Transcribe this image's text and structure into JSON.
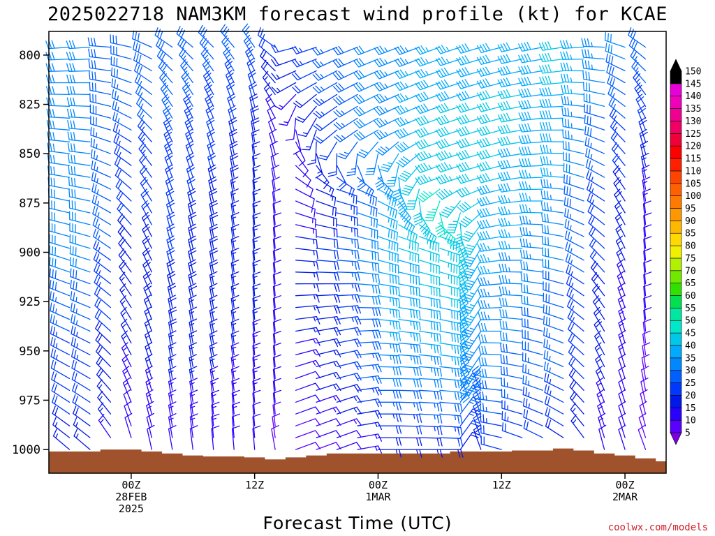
{
  "chart_data": {
    "type": "wind-barb-time-height",
    "title": "2025022718 NAM3KM forecast wind profile (kt) for KCAE",
    "xlabel": "Forecast Time (UTC)",
    "credit": "coolwx.com/models",
    "units": "kt",
    "y_axis": {
      "quantity": "pressure (hPa)",
      "range": [
        1012,
        788
      ],
      "ticks": [
        800,
        825,
        850,
        875,
        900,
        925,
        950,
        975,
        1000
      ]
    },
    "x_axis": {
      "range_hours": [
        -8,
        52
      ],
      "ticks": [
        {
          "hour": 0,
          "lines": [
            "00Z",
            "28FEB",
            "2025"
          ]
        },
        {
          "hour": 12,
          "lines": [
            "12Z"
          ]
        },
        {
          "hour": 24,
          "lines": [
            "00Z",
            "1MAR"
          ]
        },
        {
          "hour": 36,
          "lines": [
            "12Z"
          ]
        },
        {
          "hour": 48,
          "lines": [
            "00Z",
            "2MAR"
          ]
        }
      ]
    },
    "colorbar": {
      "levels": [
        5,
        10,
        15,
        20,
        25,
        30,
        35,
        40,
        45,
        50,
        55,
        60,
        65,
        70,
        75,
        80,
        85,
        90,
        95,
        100,
        105,
        110,
        115,
        120,
        125,
        130,
        135,
        140,
        145,
        150
      ],
      "colors": [
        "#7a00e6",
        "#5a00ff",
        "#2a00ff",
        "#0018e8",
        "#0038ff",
        "#0060ff",
        "#0088ff",
        "#00aaff",
        "#00c8e8",
        "#00e8c8",
        "#00e8a0",
        "#00e050",
        "#30e000",
        "#70e800",
        "#b0f000",
        "#f0f000",
        "#ffd800",
        "#ffb800",
        "#ff9800",
        "#ff7a00",
        "#ff6000",
        "#ff4400",
        "#ff2000",
        "#ff0000",
        "#f00038",
        "#f00064",
        "#f00090",
        "#f000b8",
        "#e800d8",
        "#000000"
      ]
    },
    "times_hours": [
      -4,
      -2,
      0,
      2,
      4,
      6,
      8,
      10,
      12,
      14,
      16,
      18,
      20,
      22,
      24,
      26,
      28,
      30,
      32,
      34,
      36,
      38,
      40,
      42,
      44,
      46,
      48,
      50,
      52
    ],
    "terrain_pressure_hpa": [
      1001.0,
      1000.0,
      1000.0,
      1001.0,
      1002.0,
      1003.0,
      1003.5,
      1003.5,
      1004.0,
      1005.0,
      1004.0,
      1003.0,
      1002.0,
      1002.0,
      1002.0,
      1002.0,
      1002.0,
      1002.0,
      1001.0,
      1001.0,
      1001.0,
      1000.5,
      1000.5,
      999.5,
      1000.5,
      1002.0,
      1003.0,
      1004.5,
      1006.0
    ],
    "wind_profile": [
      {
        "hour": -4,
        "dir": [
          265,
          270,
          275,
          280,
          285,
          290,
          295,
          300,
          305,
          310
        ],
        "spd": [
          30,
          30,
          30,
          30,
          32,
          30,
          25,
          22,
          20,
          15
        ]
      },
      {
        "hour": 0,
        "dir": [
          280,
          290,
          300,
          310,
          320,
          325,
          330,
          335,
          340,
          345
        ],
        "spd": [
          30,
          28,
          25,
          22,
          20,
          18,
          16,
          14,
          12,
          10
        ]
      },
      {
        "hour": 4,
        "dir": [
          300,
          320,
          335,
          340,
          345,
          345,
          350,
          350,
          350,
          350
        ],
        "spd": [
          30,
          28,
          25,
          22,
          20,
          20,
          18,
          16,
          14,
          12
        ]
      },
      {
        "hour": 8,
        "dir": [
          310,
          330,
          340,
          345,
          350,
          350,
          350,
          350,
          355,
          355
        ],
        "spd": [
          30,
          25,
          22,
          20,
          18,
          18,
          16,
          15,
          14,
          12
        ]
      },
      {
        "hour": 12,
        "dir": [
          320,
          340,
          350,
          355,
          355,
          355,
          355,
          355,
          355,
          355
        ],
        "spd": [
          28,
          22,
          18,
          16,
          15,
          15,
          15,
          14,
          12,
          10
        ]
      },
      {
        "hour": 14,
        "dir": [
          300,
          320,
          340,
          350,
          355,
          355,
          355,
          355,
          355,
          350
        ],
        "spd": [
          25,
          18,
          12,
          10,
          10,
          10,
          10,
          10,
          10,
          8
        ]
      },
      {
        "hour": 16,
        "dir": [
          260,
          240,
          160,
          120,
          100,
          90,
          80,
          70,
          70,
          70
        ],
        "spd": [
          22,
          15,
          10,
          12,
          15,
          15,
          15,
          12,
          10,
          8
        ]
      },
      {
        "hour": 20,
        "dir": [
          250,
          240,
          230,
          110,
          100,
          90,
          80,
          75,
          70,
          70
        ],
        "spd": [
          28,
          25,
          20,
          22,
          25,
          25,
          22,
          20,
          15,
          10
        ]
      },
      {
        "hour": 24,
        "dir": [
          250,
          245,
          240,
          120,
          110,
          100,
          95,
          90,
          90,
          90
        ],
        "spd": [
          32,
          32,
          30,
          35,
          38,
          38,
          35,
          30,
          22,
          15
        ]
      },
      {
        "hour": 30,
        "dir": [
          250,
          250,
          250,
          250,
          110,
          105,
          100,
          95,
          95,
          90
        ],
        "spd": [
          35,
          38,
          42,
          45,
          45,
          42,
          38,
          32,
          25,
          18
        ]
      },
      {
        "hour": 36,
        "dir": [
          255,
          255,
          255,
          255,
          260,
          265,
          270,
          275,
          280,
          285
        ],
        "spd": [
          38,
          40,
          42,
          40,
          38,
          35,
          32,
          30,
          25,
          20
        ]
      },
      {
        "hour": 42,
        "dir": [
          260,
          265,
          270,
          275,
          280,
          285,
          290,
          295,
          300,
          305
        ],
        "spd": [
          40,
          40,
          38,
          35,
          32,
          30,
          28,
          25,
          22,
          18
        ]
      },
      {
        "hour": 46,
        "dir": [
          270,
          280,
          290,
          300,
          310,
          320,
          330,
          335,
          340,
          345
        ],
        "spd": [
          35,
          32,
          28,
          25,
          22,
          20,
          18,
          16,
          14,
          12
        ]
      },
      {
        "hour": 50,
        "dir": [
          300,
          320,
          340,
          350,
          355,
          355,
          355,
          350,
          345,
          340
        ],
        "spd": [
          30,
          25,
          20,
          15,
          12,
          10,
          10,
          8,
          8,
          8
        ]
      }
    ],
    "wind_profile_pressure_hpa": [
      790,
      815,
      840,
      865,
      890,
      915,
      940,
      965,
      985,
      1000
    ]
  }
}
